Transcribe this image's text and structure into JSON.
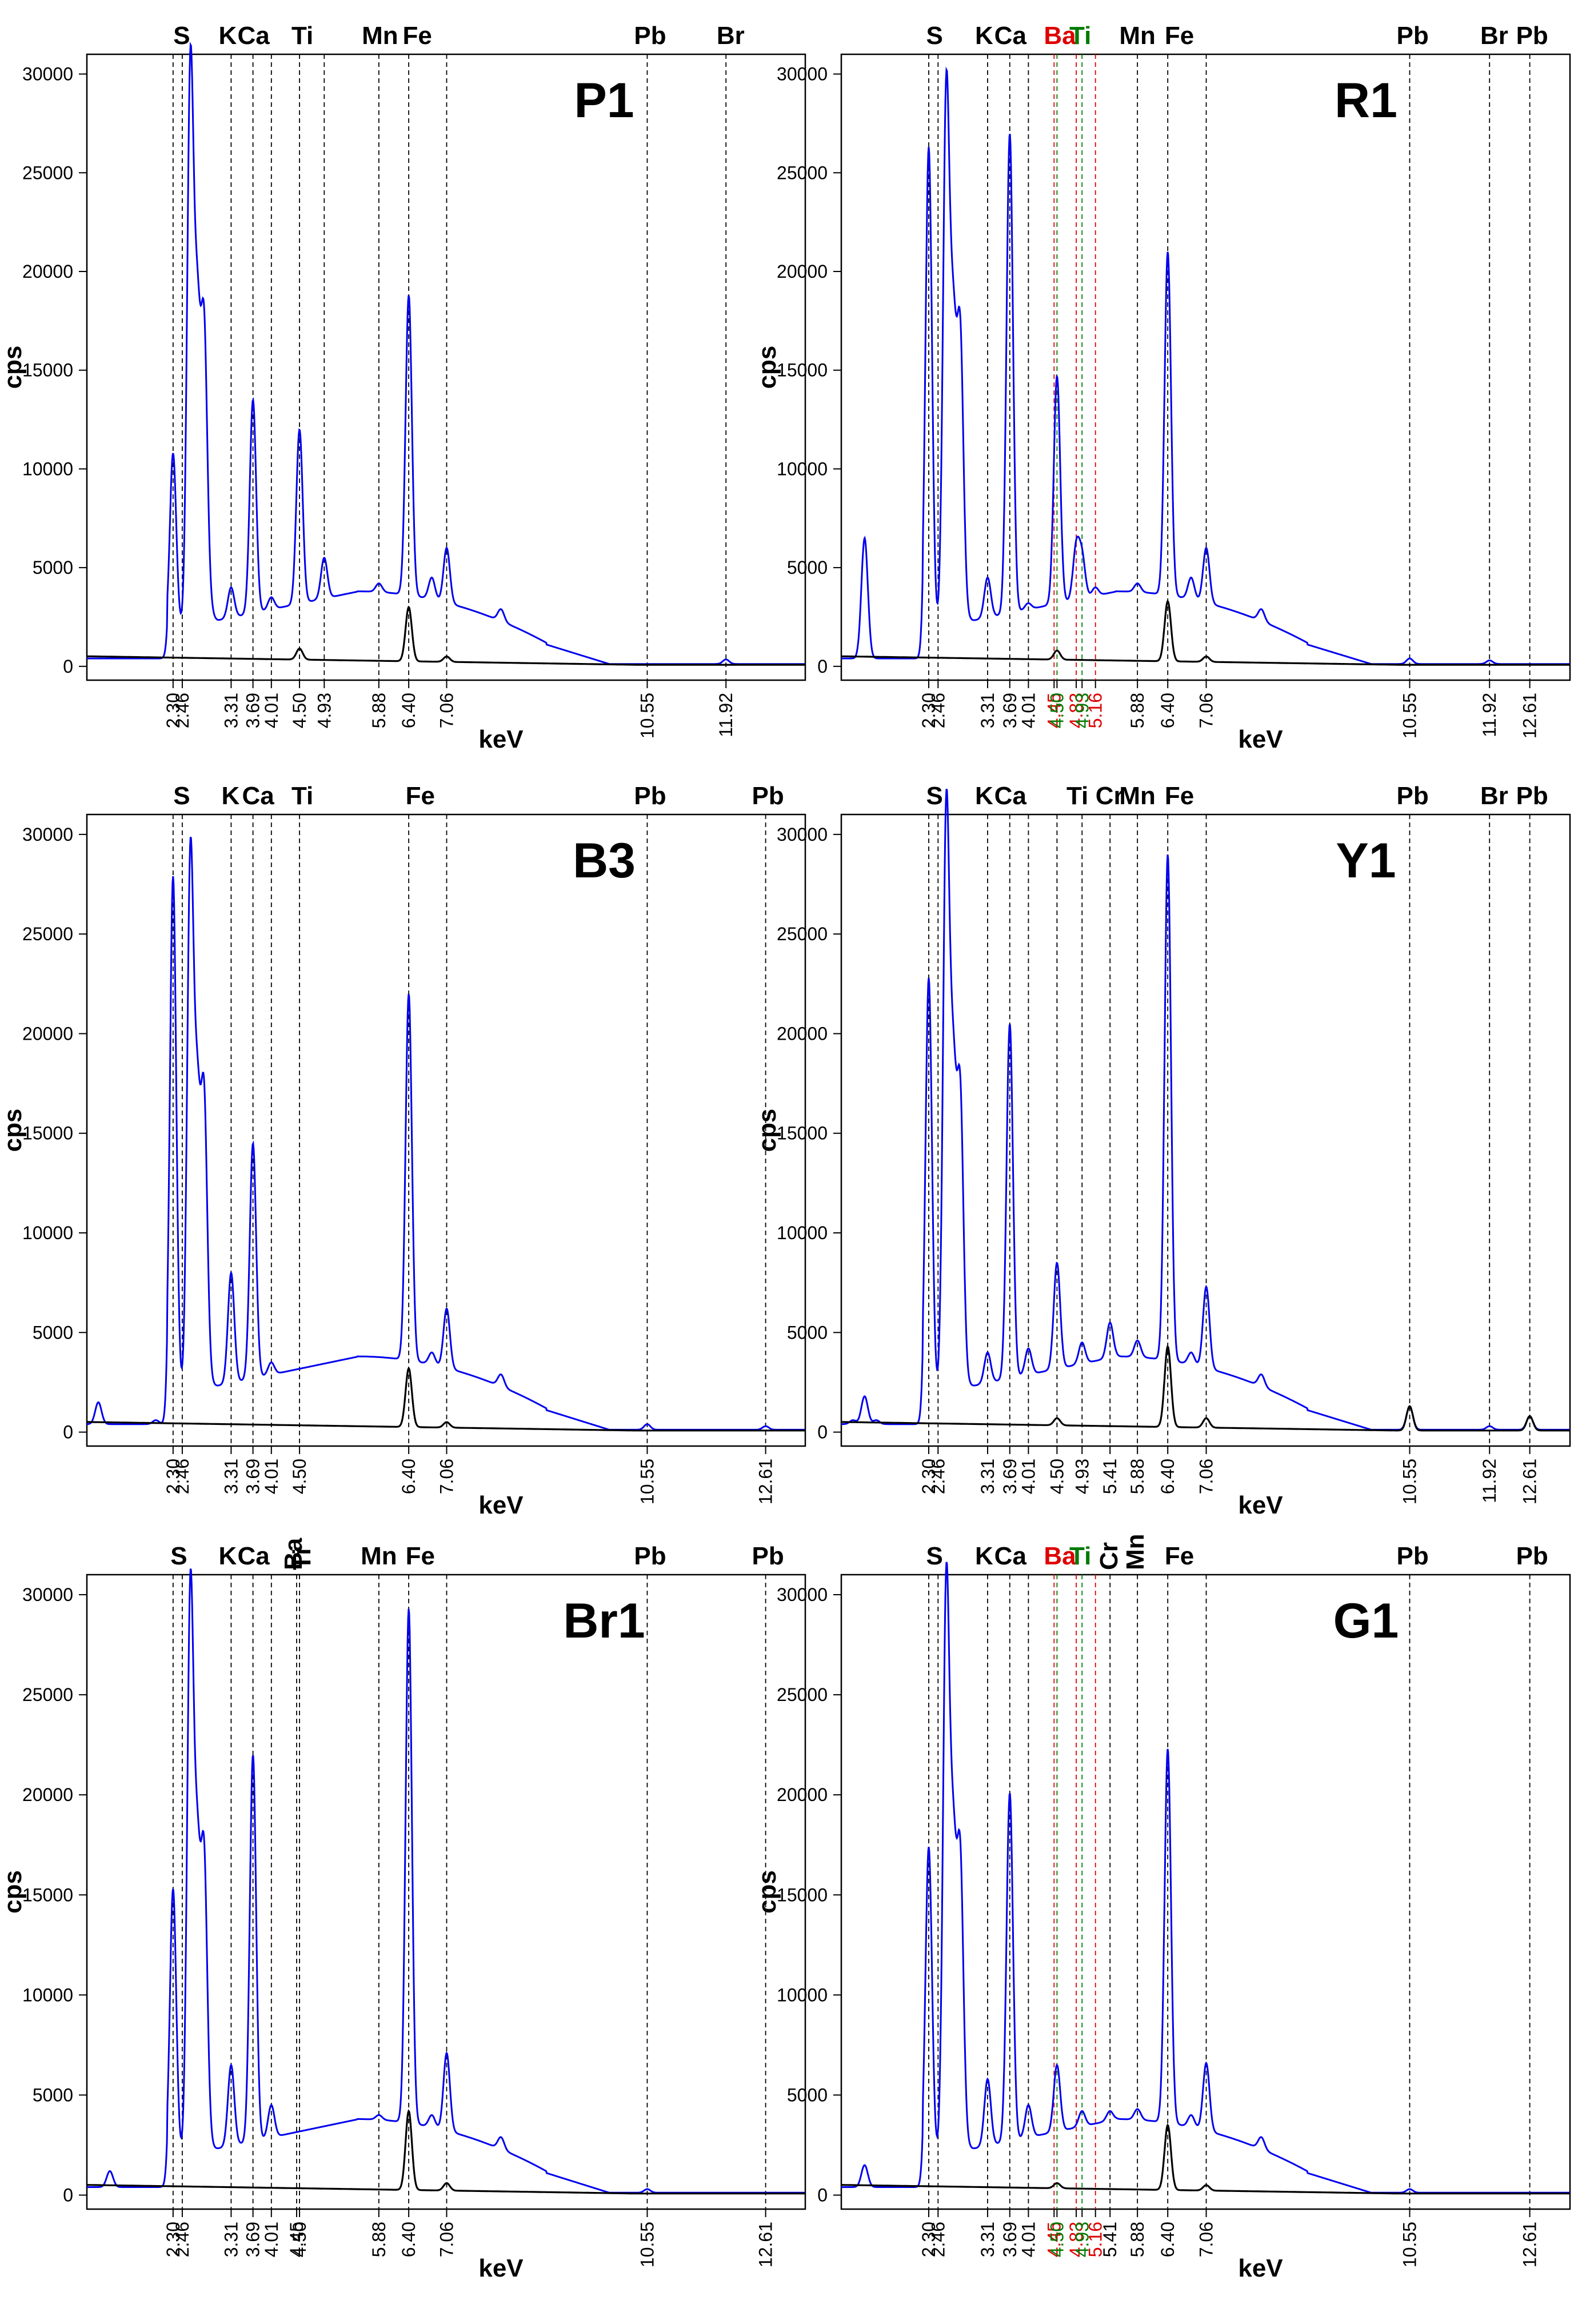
{
  "chart_data": [
    {
      "type": "line",
      "title": "P1",
      "ylabel": "cps",
      "xlabel": "keV",
      "ylim": [
        0,
        31000
      ],
      "yticks": [
        "0",
        "5000",
        "10000",
        "15000",
        "20000",
        "25000",
        "30000"
      ],
      "xticks": [
        "2.30",
        "2.46",
        "3.31",
        "3.69",
        "4.01",
        "4.50",
        "4.93",
        "5.88",
        "6.40",
        "7.06",
        "10.55",
        "11.92"
      ],
      "element_labels": [
        "S",
        "K",
        "Ca",
        "Ti",
        "Mn",
        "Fe",
        "Pb",
        "Br"
      ],
      "series": [
        {
          "color": "#0000ee",
          "x": [
            1.0,
            1.5,
            2.0,
            2.3,
            2.46,
            2.6,
            2.72,
            2.84,
            2.95,
            3.31,
            3.69,
            4.01,
            4.5,
            4.93,
            5.5,
            5.88,
            6.4,
            6.8,
            7.06,
            8.0,
            9.0,
            10.0,
            10.55,
            11.0,
            11.92,
            13.0
          ],
          "y": [
            400,
            500,
            500,
            10800,
            1200,
            30000,
            16500,
            16800,
            2800,
            4000,
            13500,
            3500,
            12000,
            5500,
            3800,
            4200,
            18800,
            4500,
            6000,
            2900,
            300,
            150,
            200,
            150,
            350,
            200
          ]
        },
        {
          "color": "#000000",
          "x": [
            1.0,
            2.3,
            3.31,
            4.5,
            5.88,
            6.4,
            7.06,
            10.55,
            11.92,
            13.0
          ],
          "y": [
            500,
            400,
            150,
            900,
            200,
            3000,
            500,
            100,
            150,
            100
          ]
        }
      ]
    },
    {
      "type": "line",
      "title": "R1",
      "ylabel": "cps",
      "xlabel": "keV",
      "ylim": [
        0,
        31000
      ],
      "yticks": [
        "0",
        "5000",
        "10000",
        "15000",
        "20000",
        "25000",
        "30000"
      ],
      "xticks": [
        "2.30",
        "2.46",
        "3.31",
        "3.69",
        "4.01",
        "4.45",
        "4.50",
        "4.83",
        "4.93",
        "5.16",
        "5.88",
        "6.40",
        "7.06",
        "10.55",
        "11.92",
        "12.61"
      ],
      "element_labels": [
        "S",
        "K",
        "Ca",
        "Ba",
        "Ti",
        "Mn",
        "Fe",
        "Pb",
        "Br",
        "Pb"
      ],
      "series": [
        {
          "color": "#0000ee",
          "x": [
            1.0,
            1.2,
            1.4,
            2.3,
            2.46,
            2.6,
            2.72,
            2.84,
            2.95,
            3.31,
            3.69,
            4.01,
            4.5,
            4.83,
            4.93,
            5.16,
            5.88,
            6.4,
            6.8,
            7.06,
            8.0,
            9.0,
            10.0,
            10.55,
            11.92,
            12.61,
            13.0
          ],
          "y": [
            500,
            6500,
            400,
            26300,
            1500,
            28800,
            15800,
            16500,
            2500,
            4500,
            27000,
            3200,
            14700,
            6000,
            5500,
            4000,
            4200,
            21000,
            4500,
            6000,
            2900,
            300,
            150,
            400,
            300,
            200,
            150
          ]
        },
        {
          "color": "#000000",
          "x": [
            1.0,
            2.3,
            3.31,
            4.5,
            5.88,
            6.4,
            7.06,
            10.55,
            11.92,
            12.61,
            13.0
          ],
          "y": [
            500,
            350,
            150,
            800,
            200,
            3300,
            500,
            150,
            150,
            100,
            100
          ]
        }
      ]
    },
    {
      "type": "line",
      "title": "B3",
      "ylabel": "cps",
      "xlabel": "keV",
      "ylim": [
        0,
        31000
      ],
      "yticks": [
        "0",
        "5000",
        "10000",
        "15000",
        "20000",
        "25000",
        "30000"
      ],
      "xticks": [
        "2.30",
        "2.46",
        "3.31",
        "3.69",
        "4.01",
        "4.50",
        "6.40",
        "7.06",
        "10.55",
        "12.61"
      ],
      "element_labels": [
        "S",
        "K",
        "Ca",
        "Ti",
        "Fe",
        "Pb",
        "Pb"
      ],
      "series": [
        {
          "color": "#0000ee",
          "x": [
            1.0,
            2.0,
            2.3,
            2.46,
            2.6,
            2.72,
            2.84,
            2.95,
            3.31,
            3.69,
            4.01,
            4.5,
            5.5,
            6.0,
            6.4,
            6.8,
            7.06,
            8.0,
            9.0,
            10.0,
            10.55,
            12.61,
            13.0
          ],
          "y": [
            1500,
            600,
            27900,
            2000,
            28500,
            15400,
            16400,
            2500,
            8000,
            14500,
            3500,
            3000,
            3800,
            3500,
            22000,
            4000,
            6200,
            2900,
            300,
            150,
            400,
            300,
            150
          ]
        },
        {
          "color": "#000000",
          "x": [
            1.0,
            2.3,
            3.31,
            4.5,
            6.4,
            7.06,
            10.55,
            12.61,
            13.0
          ],
          "y": [
            500,
            400,
            150,
            200,
            3200,
            500,
            150,
            100,
            100
          ]
        }
      ]
    },
    {
      "type": "line",
      "title": "Y1",
      "ylabel": "cps",
      "xlabel": "keV",
      "ylim": [
        0,
        31000
      ],
      "yticks": [
        "0",
        "5000",
        "10000",
        "15000",
        "20000",
        "25000",
        "30000"
      ],
      "xticks": [
        "2.30",
        "2.46",
        "3.31",
        "3.69",
        "4.01",
        "4.50",
        "4.93",
        "5.41",
        "5.88",
        "6.40",
        "7.06",
        "10.55",
        "11.92",
        "12.61"
      ],
      "element_labels": [
        "S",
        "K",
        "Ca",
        "Ti",
        "Cr",
        "Mn",
        "Fe",
        "Pb",
        "Br",
        "Pb"
      ],
      "series": [
        {
          "color": "#0000ee",
          "x": [
            1.0,
            1.2,
            1.4,
            2.3,
            2.46,
            2.6,
            2.72,
            2.84,
            2.95,
            3.31,
            3.69,
            4.01,
            4.5,
            4.93,
            5.41,
            5.88,
            6.4,
            6.8,
            7.06,
            8.0,
            9.0,
            10.0,
            10.55,
            11.92,
            12.61,
            13.0
          ],
          "y": [
            600,
            1800,
            600,
            22800,
            1500,
            30800,
            16500,
            16600,
            2500,
            4000,
            20500,
            4200,
            8500,
            4500,
            5500,
            4600,
            29000,
            4000,
            7300,
            2900,
            300,
            150,
            1300,
            300,
            800,
            150
          ]
        },
        {
          "color": "#000000",
          "x": [
            1.0,
            2.3,
            3.31,
            4.5,
            5.88,
            6.4,
            7.06,
            10.55,
            11.92,
            12.61,
            13.0
          ],
          "y": [
            500,
            400,
            150,
            700,
            200,
            4300,
            700,
            1300,
            200,
            800,
            100
          ]
        }
      ]
    },
    {
      "type": "line",
      "title": "Br1",
      "ylabel": "cps",
      "xlabel": "keV",
      "ylim": [
        0,
        31000
      ],
      "yticks": [
        "0",
        "5000",
        "10000",
        "15000",
        "20000",
        "25000",
        "30000"
      ],
      "xticks": [
        "2.30",
        "2.46",
        "3.31",
        "3.69",
        "4.01",
        "4.45",
        "4.50",
        "5.88",
        "6.40",
        "7.06",
        "10.55",
        "12.61"
      ],
      "element_labels": [
        "S",
        "K",
        "Ca",
        "Ba",
        "Ti",
        "Mn",
        "Fe",
        "Pb",
        "Pb"
      ],
      "series": [
        {
          "color": "#0000ee",
          "x": [
            1.0,
            1.2,
            1.4,
            2.3,
            2.46,
            2.6,
            2.72,
            2.84,
            2.95,
            3.31,
            3.69,
            4.01,
            4.5,
            5.5,
            5.88,
            6.4,
            6.8,
            7.06,
            8.0,
            9.0,
            10.0,
            10.55,
            12.61,
            13.0
          ],
          "y": [
            400,
            1200,
            500,
            15300,
            1500,
            29900,
            15700,
            16500,
            2500,
            6500,
            22000,
            4500,
            3000,
            3800,
            4000,
            29300,
            4000,
            7100,
            2900,
            300,
            150,
            300,
            200,
            150
          ]
        },
        {
          "color": "#000000",
          "x": [
            1.0,
            2.3,
            3.31,
            4.5,
            5.88,
            6.4,
            7.06,
            10.55,
            12.61,
            13.0
          ],
          "y": [
            500,
            400,
            150,
            200,
            200,
            4200,
            600,
            150,
            100,
            100
          ]
        }
      ]
    },
    {
      "type": "line",
      "title": "G1",
      "ylabel": "cps",
      "xlabel": "keV",
      "ylim": [
        0,
        31000
      ],
      "yticks": [
        "0",
        "5000",
        "10000",
        "15000",
        "20000",
        "25000",
        "30000"
      ],
      "xticks": [
        "2.30",
        "2.46",
        "3.31",
        "3.69",
        "4.01",
        "4.45",
        "4.50",
        "4.83",
        "4.93",
        "5.16",
        "5.41",
        "5.88",
        "6.40",
        "7.06",
        "10.55",
        "12.61"
      ],
      "element_labels": [
        "S",
        "K",
        "Ca",
        "Ba",
        "Ti",
        "Cr",
        "Mn",
        "Fe",
        "Pb",
        "Pb"
      ],
      "series": [
        {
          "color": "#0000ee",
          "x": [
            1.0,
            1.2,
            1.4,
            2.3,
            2.46,
            2.6,
            2.72,
            2.84,
            2.95,
            3.31,
            3.69,
            4.01,
            4.5,
            4.93,
            5.41,
            5.88,
            6.4,
            6.8,
            7.06,
            8.0,
            9.0,
            10.0,
            10.55,
            12.61,
            13.0
          ],
          "y": [
            400,
            1500,
            500,
            17400,
            1500,
            30200,
            16000,
            16500,
            2500,
            5800,
            20100,
            4500,
            6500,
            4200,
            4200,
            4300,
            22300,
            4000,
            6600,
            2900,
            300,
            150,
            300,
            200,
            150
          ]
        },
        {
          "color": "#000000",
          "x": [
            1.0,
            2.3,
            3.31,
            4.5,
            5.88,
            6.4,
            7.06,
            10.55,
            12.61,
            13.0
          ],
          "y": [
            500,
            400,
            150,
            600,
            200,
            3500,
            500,
            150,
            100,
            100
          ]
        }
      ]
    }
  ]
}
